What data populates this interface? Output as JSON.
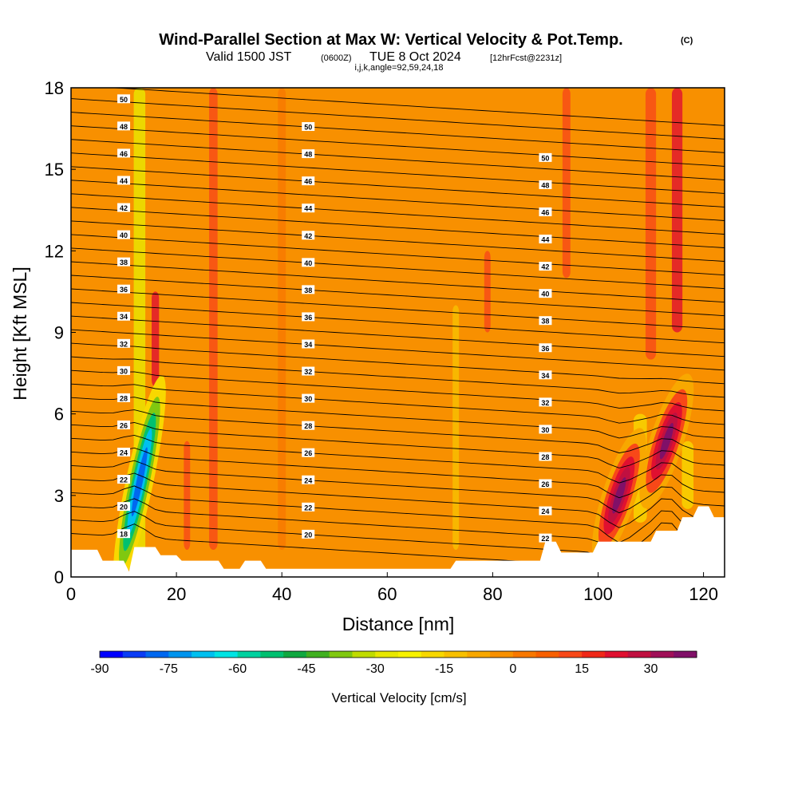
{
  "header": {
    "title": "Wind-Parallel Section at Max W: Vertical Velocity & Pot.Temp.",
    "title_mark": "(C)",
    "valid_prefix": "Valid 1500 JST",
    "valid_utc": "(0600Z)",
    "valid_date": "TUE 8 Oct 2024",
    "forecast": "[12hrFcst@2231z]",
    "params": "i,j,k,angle=92,59,24,18"
  },
  "chart_data": {
    "type": "heatmap",
    "xlabel": "Distance [nm]",
    "ylabel": "Height [Kft MSL]",
    "xlim": [
      0,
      124
    ],
    "ylim": [
      0,
      18
    ],
    "x_ticks": [
      "0",
      "20",
      "40",
      "60",
      "80",
      "100",
      "120"
    ],
    "y_ticks": [
      "0",
      "3",
      "6",
      "9",
      "12",
      "15",
      "18"
    ],
    "colorbar": {
      "label": "Vertical Velocity [cm/s]",
      "range": [
        -90,
        40
      ],
      "step": 5,
      "tick_labels": [
        "-90",
        "-75",
        "-60",
        "-45",
        "-30",
        "-15",
        "0",
        "15",
        "30"
      ],
      "colors": [
        "#0000ff",
        "#0a3cf5",
        "#0068f0",
        "#0094ee",
        "#00c0f0",
        "#00e4e4",
        "#00d2a0",
        "#00c070",
        "#10a840",
        "#40b020",
        "#80c810",
        "#c0dc00",
        "#e8e800",
        "#f8f200",
        "#f8d800",
        "#f8c000",
        "#f8a800",
        "#f89000",
        "#f87800",
        "#f86000",
        "#f84818",
        "#f02818",
        "#e01030",
        "#c01040",
        "#a01058",
        "#801068"
      ]
    },
    "theta_contour_labels": [
      "18",
      "20",
      "22",
      "24",
      "26",
      "28",
      "30",
      "32",
      "34",
      "36",
      "38",
      "40",
      "42",
      "44",
      "46",
      "48",
      "50"
    ],
    "features": [
      {
        "kind": "downdraft",
        "x": 13,
        "y": 3.5,
        "min_w": -80
      },
      {
        "kind": "updraft",
        "x": 104,
        "y": 3.0,
        "max_w": 35
      },
      {
        "kind": "updraft",
        "x": 113,
        "y": 5.0,
        "max_w": 35
      }
    ],
    "terrain_height_kft": [
      [
        0,
        1.0
      ],
      [
        5,
        1.0
      ],
      [
        6,
        0.6
      ],
      [
        10,
        0.6
      ],
      [
        11,
        0.2
      ],
      [
        12,
        1.1
      ],
      [
        16,
        1.1
      ],
      [
        17,
        0.8
      ],
      [
        20,
        0.8
      ],
      [
        21,
        0.6
      ],
      [
        28,
        0.6
      ],
      [
        29,
        0.3
      ],
      [
        32,
        0.3
      ],
      [
        33,
        0.6
      ],
      [
        36,
        0.6
      ],
      [
        37,
        0.3
      ],
      [
        72,
        0.3
      ],
      [
        73,
        0.6
      ],
      [
        89,
        0.6
      ],
      [
        90,
        1.3
      ],
      [
        92,
        1.3
      ],
      [
        93,
        0.9
      ],
      [
        99,
        0.9
      ],
      [
        100,
        1.3
      ],
      [
        110,
        1.3
      ],
      [
        111,
        1.7
      ],
      [
        115,
        1.7
      ],
      [
        116,
        2.2
      ],
      [
        118,
        2.2
      ],
      [
        119,
        2.6
      ],
      [
        121,
        2.6
      ],
      [
        122,
        2.2
      ],
      [
        124,
        2.2
      ]
    ]
  }
}
